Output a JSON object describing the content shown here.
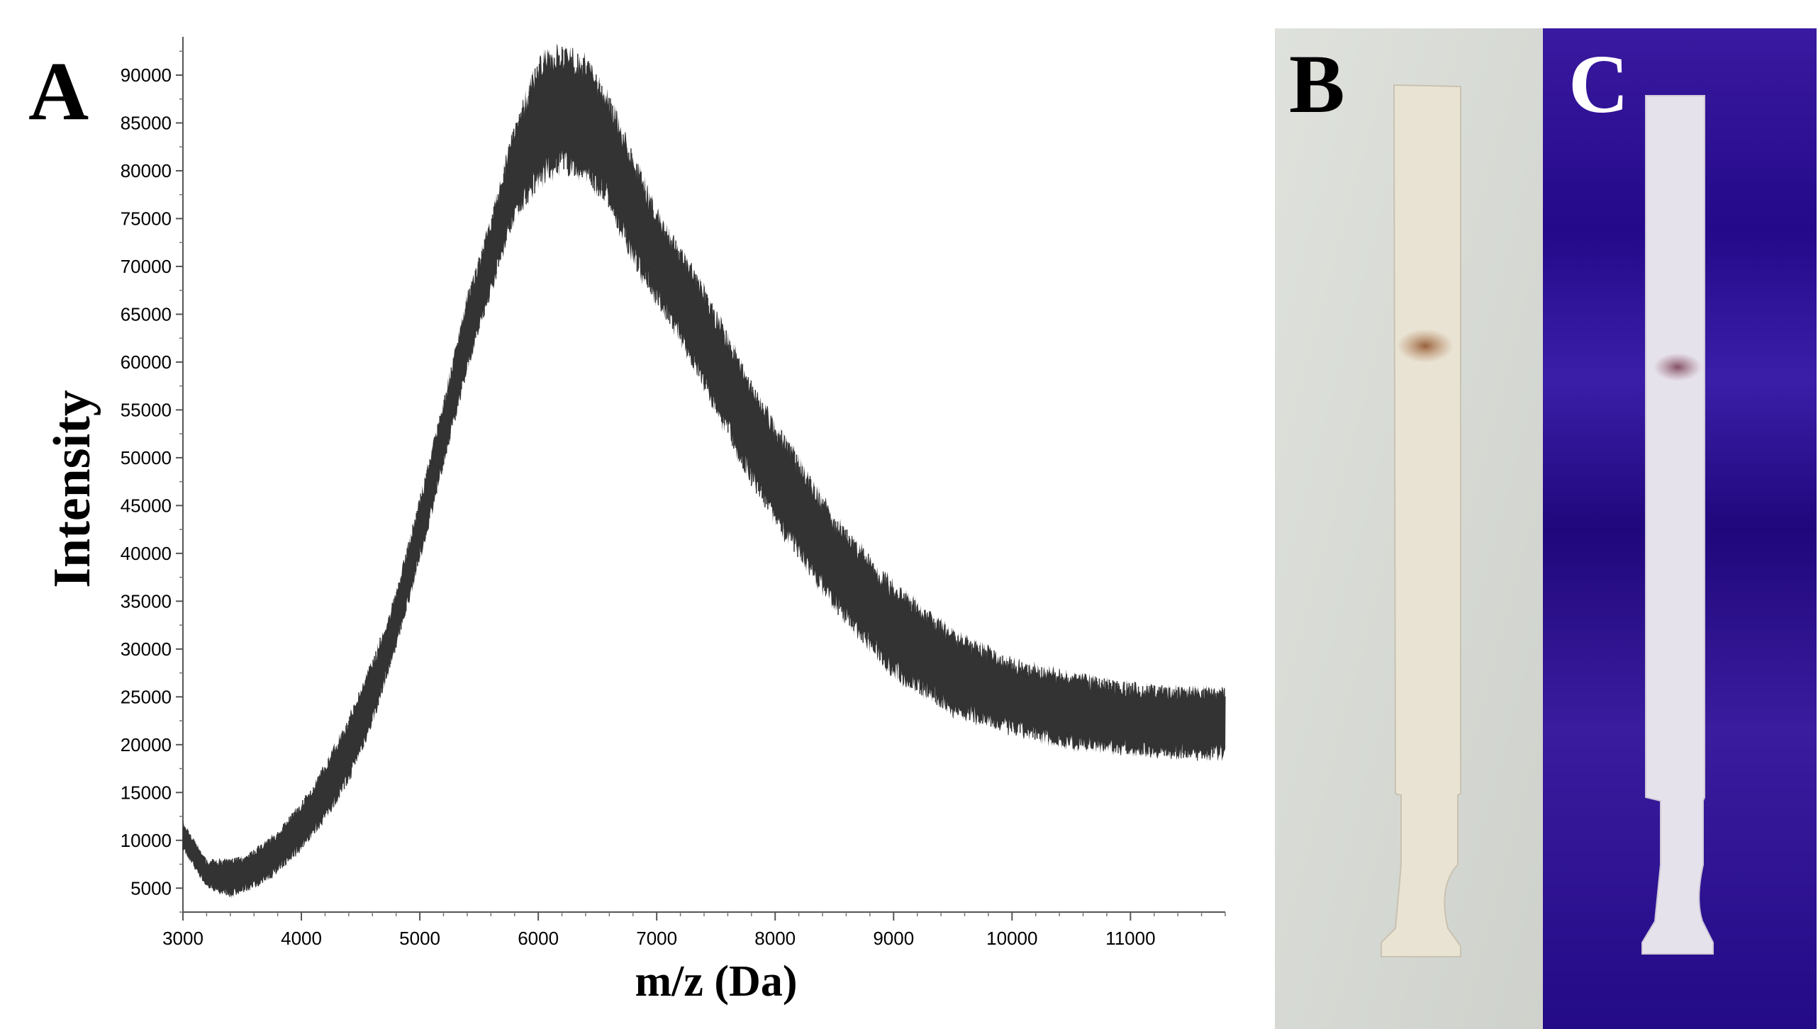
{
  "panels": {
    "a": "A",
    "b": "B",
    "c": "C"
  },
  "chart_data": {
    "type": "line",
    "title": "",
    "xlabel": "m/z (Da)",
    "ylabel": "Intensity",
    "xlim": [
      3000,
      11800
    ],
    "ylim": [
      2500,
      94000
    ],
    "x_ticks": [
      3000,
      4000,
      5000,
      6000,
      7000,
      8000,
      9000,
      10000,
      11000
    ],
    "y_ticks": [
      5000,
      10000,
      15000,
      20000,
      25000,
      30000,
      35000,
      40000,
      45000,
      50000,
      55000,
      60000,
      65000,
      70000,
      75000,
      80000,
      85000,
      90000
    ],
    "grid": false,
    "line_color": "#333333",
    "series": [
      {
        "x": [
          3000,
          3200,
          3400,
          3600,
          3800,
          4000,
          4200,
          4400,
          4600,
          4800,
          5000,
          5200,
          5400,
          5600,
          5800,
          6000,
          6200,
          6400,
          6600,
          6800,
          7000,
          7200,
          7400,
          7600,
          7800,
          8000,
          8500,
          9000,
          9500,
          10000,
          10500,
          11000,
          11500,
          11800
        ],
        "upper": [
          12000,
          8000,
          8000,
          9000,
          11000,
          14000,
          18000,
          23000,
          29000,
          36000,
          46000,
          56000,
          67000,
          75000,
          85000,
          92000,
          93000,
          92000,
          88000,
          82000,
          76000,
          72000,
          68000,
          63000,
          58000,
          54000,
          44000,
          37000,
          32000,
          29000,
          27500,
          26500,
          26000,
          26000
        ],
        "lower": [
          9000,
          5000,
          4000,
          5000,
          6500,
          9000,
          12000,
          16000,
          22000,
          30000,
          39000,
          49000,
          59000,
          67000,
          75000,
          78000,
          80000,
          79000,
          76000,
          70000,
          66000,
          62000,
          57000,
          52000,
          47000,
          43000,
          34000,
          27000,
          23000,
          21000,
          19500,
          19000,
          18500,
          18500
        ]
      }
    ]
  },
  "photos": {
    "b_background": "#d9dcd6",
    "c_background": "#2a0f86",
    "strip_color": "#e9e3d4",
    "spot_color": "#8a4a22"
  }
}
